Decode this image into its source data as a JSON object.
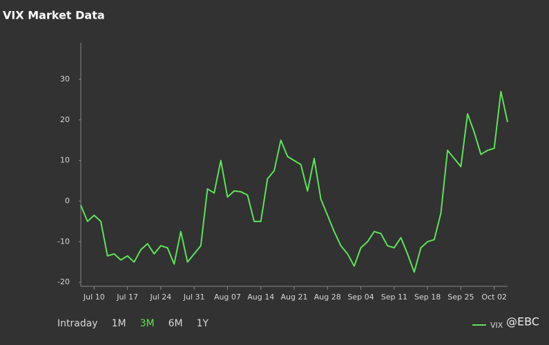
{
  "chart_data": {
    "type": "line",
    "title": "VIX Market Data",
    "categories": [
      null,
      null,
      "Jul 10",
      null,
      null,
      null,
      null,
      "Jul 17",
      null,
      null,
      null,
      null,
      "Jul 24",
      null,
      null,
      null,
      null,
      "Jul 31",
      null,
      null,
      null,
      null,
      "Aug 07",
      null,
      null,
      null,
      null,
      "Aug 14",
      null,
      null,
      null,
      null,
      "Aug 21",
      null,
      null,
      null,
      null,
      "Aug 28",
      null,
      null,
      null,
      null,
      "Sep 04",
      null,
      null,
      null,
      null,
      "Sep 11",
      null,
      null,
      null,
      null,
      "Sep 18",
      null,
      null,
      null,
      null,
      "Sep 25",
      null,
      null,
      null,
      null,
      "Oct 02",
      null,
      null
    ],
    "series": [
      {
        "name": "VIX",
        "color": "#5fe35a",
        "values": [
          -1,
          -5,
          -3.5,
          -5,
          -13.5,
          -13,
          -14.5,
          -13.5,
          -15,
          -12,
          -10.5,
          -13,
          -11,
          -11.5,
          -15.5,
          -7.5,
          -15,
          -13,
          -11,
          3,
          2,
          10,
          1,
          2.5,
          2.3,
          1.5,
          -5,
          -5,
          5.5,
          7.5,
          15,
          11,
          10,
          9,
          2.5,
          10.5,
          0.5,
          -3.5,
          -7.5,
          -11,
          -13,
          -16,
          -11.5,
          -10,
          -7.5,
          -8,
          -11,
          -11.5,
          -9,
          -13,
          -17.5,
          -11.5,
          -10,
          -9.5,
          -3,
          12.5,
          10.5,
          8.5,
          21.5,
          17,
          11.5,
          12.5,
          13,
          27,
          19.5
        ]
      }
    ],
    "ylim": [
      -21,
      39
    ],
    "yticks": [
      -20,
      -10,
      0,
      10,
      20,
      30
    ],
    "grid": false,
    "legend": "bottom-right"
  },
  "range_buttons": [
    "Intraday",
    "1M",
    "3M",
    "6M",
    "1Y"
  ],
  "active_range": 2,
  "watermark": "@EBC"
}
